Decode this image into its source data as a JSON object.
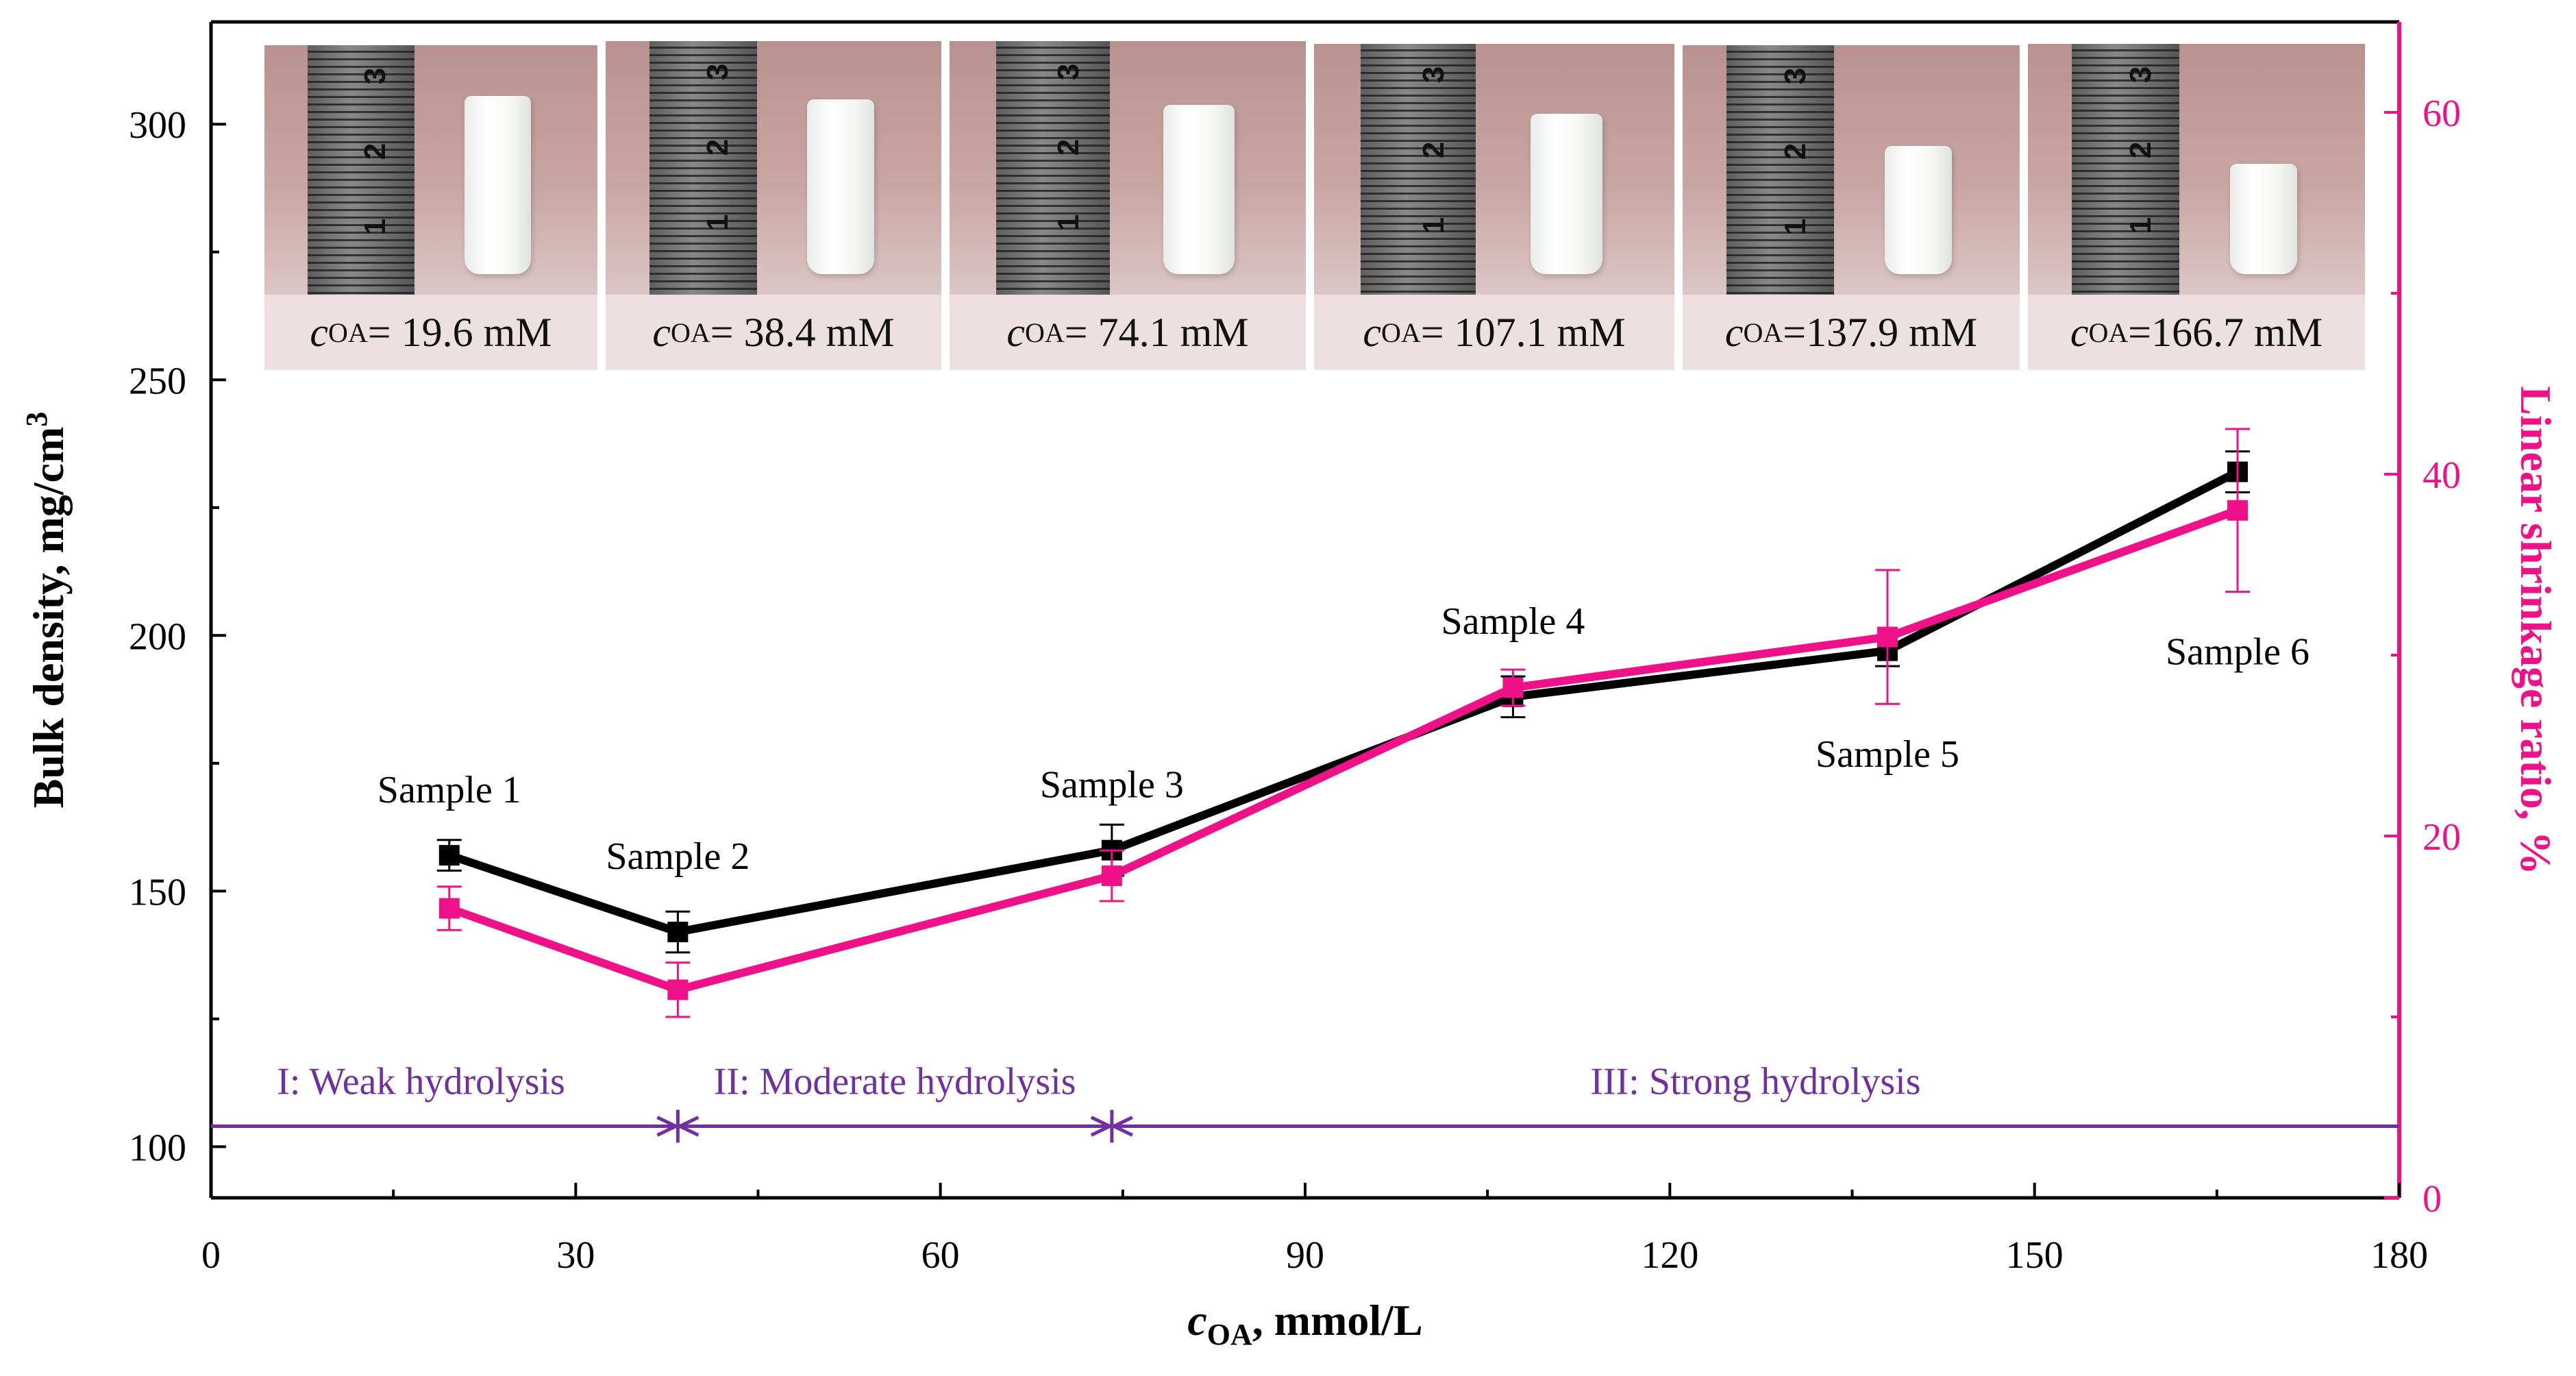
{
  "chart_data": {
    "type": "line",
    "x_label": "c",
    "x_label_sub": "OA",
    "x_label_rest": ", mmol/L",
    "y_label": "Bulk density, mg/cm",
    "y_label_sup": "3",
    "y2_label": "Linear shrinkage ratio, %",
    "xlim": [
      0,
      180
    ],
    "ylim": [
      90,
      320
    ],
    "y2lim": [
      0,
      65
    ],
    "x_ticks": [
      0,
      30,
      60,
      90,
      120,
      150,
      180
    ],
    "y_ticks": [
      100,
      150,
      200,
      250,
      300
    ],
    "y2_ticks": [
      0,
      20,
      40,
      60
    ],
    "series": [
      {
        "name": "Bulk density",
        "axis": "left",
        "color": "#000000",
        "x": [
          19.6,
          38.4,
          74.1,
          107.1,
          137.9,
          166.7
        ],
        "y": [
          157,
          142,
          158,
          188,
          197,
          232
        ],
        "err": [
          3,
          4,
          5,
          4,
          3,
          4
        ]
      },
      {
        "name": "Linear shrinkage ratio",
        "axis": "right",
        "color": "#ee1188",
        "x": [
          19.6,
          38.4,
          74.1,
          107.1,
          137.9,
          166.7
        ],
        "y": [
          16,
          11.5,
          17.8,
          28.2,
          31,
          38
        ],
        "err": [
          1.2,
          1.5,
          1.4,
          1.0,
          3.7,
          4.5
        ]
      }
    ],
    "point_labels": [
      {
        "text": "Sample 1",
        "x": 19.6,
        "y": 170
      },
      {
        "text": "Sample 2",
        "x": 38.4,
        "y": 157
      },
      {
        "text": "Sample 3",
        "x": 74.1,
        "y": 171
      },
      {
        "text": "Sample 4",
        "x": 107.1,
        "y": 203
      },
      {
        "text": "Sample 5",
        "x": 137.9,
        "y": 177
      },
      {
        "text": "Sample 6",
        "x": 166.7,
        "y": 197
      }
    ],
    "regions": [
      {
        "label": "I: Weak hydrolysis",
        "from": 0,
        "to": 38.4
      },
      {
        "label": "II: Moderate hydrolysis",
        "from": 38.4,
        "to": 74.1
      },
      {
        "label": "III: Strong hydrolysis",
        "from": 74.1,
        "to": 180
      }
    ],
    "region_line_y": 104,
    "region_label_y": 113,
    "region_color": "#7030a0"
  },
  "photos": [
    {
      "symbol": "c",
      "sub": "OA",
      "text": "= 19.6 mM",
      "ruler": [
        "3",
        "2",
        "1"
      ]
    },
    {
      "symbol": "c",
      "sub": "OA",
      "text": "= 38.4 mM",
      "ruler": [
        "3",
        "2",
        "1"
      ]
    },
    {
      "symbol": "c",
      "sub": "OA",
      "text": "= 74.1 mM",
      "ruler": [
        "3",
        "2",
        "1"
      ]
    },
    {
      "symbol": "c",
      "sub": "OA",
      "text": "= 107.1 mM",
      "ruler": [
        "3",
        "2",
        "1"
      ]
    },
    {
      "symbol": "c",
      "sub": "OA",
      "text": "=137.9 mM",
      "ruler": [
        "3",
        "2",
        "1"
      ]
    },
    {
      "symbol": "c",
      "sub": "OA",
      "text": "=166.7 mM",
      "ruler": [
        "3",
        "2",
        "1"
      ]
    }
  ]
}
